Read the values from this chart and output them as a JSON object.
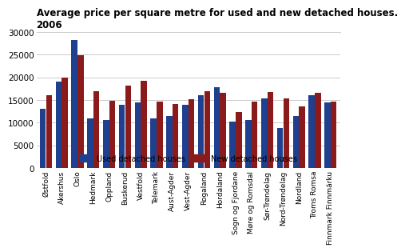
{
  "title": "Average price per square metre for used and new detached houses.\n2006",
  "categories": [
    "Østfold",
    "Akershus",
    "Oslo",
    "Hedmark",
    "Oppland",
    "Buskerud",
    "Vestfold",
    "Telemark",
    "Aust-Agder",
    "Vest-Agder",
    "Rogaland",
    "Hordaland",
    "Sogn og Fjordane",
    "Møre og Romsdal",
    "Sør-Trøndelag",
    "Nord-Trøndelag",
    "Nordland",
    "Troms Romsa",
    "Finnmark Finnmárku"
  ],
  "used": [
    13000,
    19000,
    28200,
    11000,
    10600,
    13900,
    14400,
    10900,
    11500,
    13900,
    16000,
    17900,
    10200,
    10600,
    15400,
    8800,
    11400,
    16100,
    14500
  ],
  "new": [
    16100,
    20000,
    24900,
    17000,
    14800,
    18100,
    19300,
    14700,
    14200,
    15200,
    16900,
    16600,
    12400,
    14700,
    16700,
    15300,
    13600,
    16500,
    14700
  ],
  "used_color": "#1F3F8F",
  "new_color": "#8B1A1A",
  "ylim": [
    0,
    30000
  ],
  "yticks": [
    0,
    5000,
    10000,
    15000,
    20000,
    25000,
    30000
  ],
  "legend_used": "Used detached houses",
  "legend_new": "New detached houses",
  "bg_color": "#ffffff",
  "grid_color": "#cccccc"
}
